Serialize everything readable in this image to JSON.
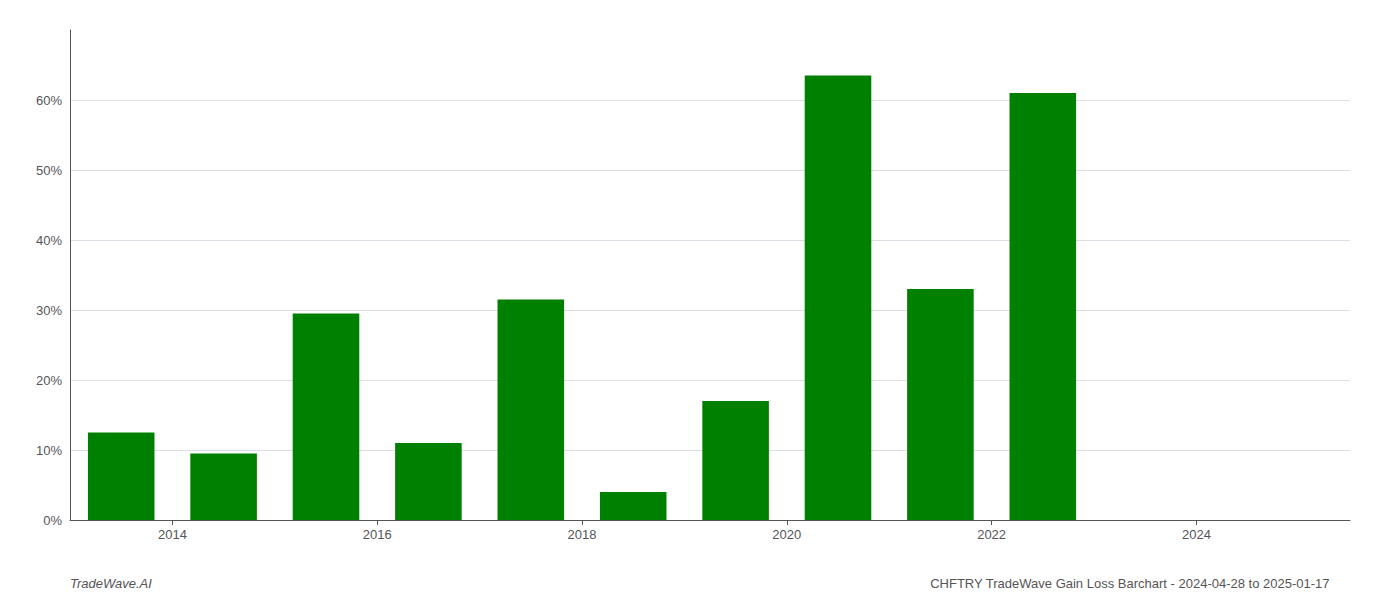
{
  "chart_data": {
    "type": "bar",
    "x": [
      2013.5,
      2014.5,
      2015.5,
      2016.5,
      2017.5,
      2018.5,
      2019.5,
      2020.5,
      2021.5,
      2022.5
    ],
    "values": [
      12.5,
      9.5,
      29.5,
      11.0,
      31.5,
      4.0,
      17.0,
      63.5,
      33.0,
      61.0
    ],
    "color": "#008000",
    "xlim": [
      2013.0,
      2025.5
    ],
    "xticks": [
      2014,
      2016,
      2018,
      2020,
      2022,
      2024
    ],
    "ylim": [
      0,
      70
    ],
    "yticks": [
      {
        "value": 0,
        "label": "0%"
      },
      {
        "value": 10,
        "label": "10%"
      },
      {
        "value": 20,
        "label": "20%"
      },
      {
        "value": 30,
        "label": "30%"
      },
      {
        "value": 40,
        "label": "40%"
      },
      {
        "value": 50,
        "label": "50%"
      },
      {
        "value": 60,
        "label": "60%"
      }
    ],
    "grid": true,
    "annotations": [
      "TradeWave.AI",
      "CHFTRY TradeWave Gain Loss Barchart - 2024-04-28 to 2025-01-17"
    ]
  }
}
